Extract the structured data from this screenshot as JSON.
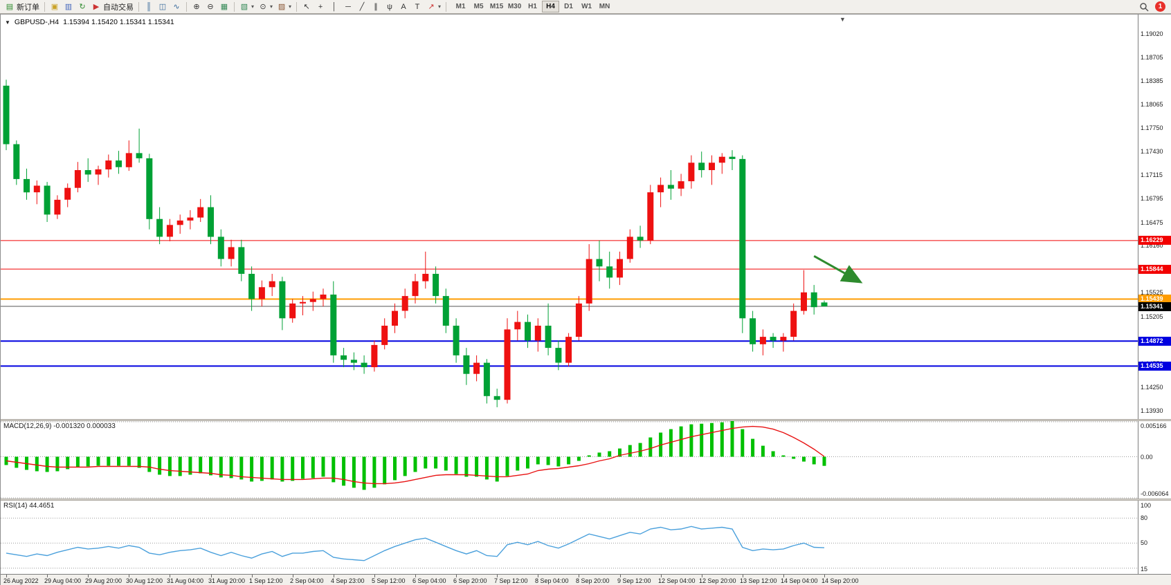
{
  "toolbar": {
    "groups": [
      [
        {
          "name": "new-order-button",
          "icon": "new-order-icon",
          "glyph": "▤",
          "color": "#2e8b2e",
          "label": "新订单"
        }
      ],
      [
        {
          "name": "metaeditor-button",
          "icon": "editor-icon",
          "glyph": "▣",
          "color": "#c9a227"
        },
        {
          "name": "market-watch-button",
          "icon": "market-watch-icon",
          "glyph": "▥",
          "color": "#4466bb"
        },
        {
          "name": "refresh-button",
          "icon": "refresh-icon",
          "glyph": "↻",
          "color": "#2e8b2e"
        },
        {
          "name": "autotrading-button",
          "icon": "autotrading-icon",
          "glyph": "▶",
          "color": "#cc3333",
          "label": "自动交易"
        }
      ],
      [
        {
          "name": "bar-chart-button",
          "icon": "bar-chart-icon",
          "glyph": "║",
          "color": "#336699"
        },
        {
          "name": "candle-chart-button",
          "icon": "candle-chart-icon",
          "glyph": "◫",
          "color": "#336699"
        },
        {
          "name": "line-chart-button",
          "icon": "line-chart-icon",
          "glyph": "∿",
          "color": "#336699"
        }
      ],
      [
        {
          "name": "zoom-in-button",
          "icon": "zoom-in-icon",
          "glyph": "⊕",
          "color": "#333333"
        },
        {
          "name": "zoom-out-button",
          "icon": "zoom-out-icon",
          "glyph": "⊖",
          "color": "#333333"
        },
        {
          "name": "tile-windows-button",
          "icon": "tile-windows-icon",
          "glyph": "▦",
          "color": "#338855"
        }
      ],
      [
        {
          "name": "new-chart-button",
          "icon": "new-chart-icon",
          "glyph": "▧",
          "color": "#338855",
          "dropdown": true
        },
        {
          "name": "profiles-button",
          "icon": "clock-icon",
          "glyph": "⊙",
          "color": "#333333",
          "dropdown": true
        },
        {
          "name": "indicators-button",
          "icon": "indicator-icon",
          "glyph": "▨",
          "color": "#885533",
          "dropdown": true
        }
      ],
      [
        {
          "name": "cursor-button",
          "icon": "cursor-icon",
          "glyph": "↖",
          "color": "#333333"
        },
        {
          "name": "crosshair-button",
          "icon": "crosshair-icon",
          "glyph": "+",
          "color": "#333333"
        },
        {
          "name": "vertical-line-button",
          "icon": "vertical-line-icon",
          "glyph": "│",
          "color": "#333333"
        },
        {
          "name": "horizontal-line-button",
          "icon": "horizontal-line-icon",
          "glyph": "─",
          "color": "#333333"
        },
        {
          "name": "trendline-button",
          "icon": "trendline-icon",
          "glyph": "╱",
          "color": "#333333"
        },
        {
          "name": "channel-button",
          "icon": "channel-icon",
          "glyph": "∥",
          "color": "#333333"
        },
        {
          "name": "fibonacci-button",
          "icon": "fibonacci-icon",
          "glyph": "ψ",
          "color": "#333333"
        },
        {
          "name": "text-button",
          "icon": "text-icon",
          "glyph": "A",
          "color": "#333333"
        },
        {
          "name": "text-label-button",
          "icon": "text-label-icon",
          "glyph": "T",
          "color": "#333333"
        },
        {
          "name": "arrows-button",
          "icon": "arrow-object-icon",
          "glyph": "↗",
          "color": "#cc3333",
          "dropdown": true
        }
      ]
    ],
    "timeframes": [
      "M1",
      "M5",
      "M15",
      "M30",
      "H1",
      "H4",
      "D1",
      "W1",
      "MN"
    ],
    "active_timeframe": "H4",
    "notification_count": "1"
  },
  "chart": {
    "symbol_title": "GBPUSD-,H4",
    "ohlc": "1.15394 1.15420 1.15341 1.15341"
  },
  "price_axis": {
    "ticks": [
      "1.19020",
      "1.18705",
      "1.18385",
      "1.18065",
      "1.17750",
      "1.17430",
      "1.17115",
      "1.16795",
      "1.16475",
      "1.16160",
      "1.15840",
      "1.15525",
      "1.15205",
      "1.14890",
      "1.14570",
      "1.14250",
      "1.13930"
    ]
  },
  "macd_panel": {
    "label": "MACD(12,26,9) -0.001320 0.000033",
    "scale": [
      "0.005166",
      "0.00",
      "-0.006064"
    ]
  },
  "rsi_panel": {
    "label": "RSI(14) 44.4651",
    "scale": [
      "100",
      "80",
      "50",
      "15"
    ]
  },
  "chart_data": [
    {
      "type": "candlestick",
      "title": "GBPUSD- H4",
      "up_color": "#ee1111",
      "down_color": "#00a135",
      "ylim": [
        1.1382,
        1.1928
      ],
      "bars_per_label": 4,
      "x_labels": [
        "26 Aug 2022",
        "29 Aug 04:00",
        "29 Aug 20:00",
        "30 Aug 12:00",
        "31 Aug 04:00",
        "31 Aug 20:00",
        "1 Sep 12:00",
        "2 Sep 04:00",
        "4 Sep 23:00",
        "5 Sep 12:00",
        "6 Sep 04:00",
        "6 Sep 20:00",
        "7 Sep 12:00",
        "8 Sep 04:00",
        "8 Sep 20:00",
        "9 Sep 12:00",
        "12 Sep 04:00",
        "12 Sep 20:00",
        "13 Sep 12:00",
        "14 Sep 04:00",
        "14 Sep 20:00"
      ],
      "candles": [
        [
          1.1832,
          1.184,
          1.1745,
          1.1753
        ],
        [
          1.1753,
          1.1758,
          1.1698,
          1.1706
        ],
        [
          1.1706,
          1.172,
          1.1678,
          1.1688
        ],
        [
          1.1688,
          1.1704,
          1.1672,
          1.1697
        ],
        [
          1.1697,
          1.1702,
          1.1648,
          1.1658
        ],
        [
          1.1658,
          1.1684,
          1.1652,
          1.1678
        ],
        [
          1.1678,
          1.17,
          1.1668,
          1.1694
        ],
        [
          1.1694,
          1.1729,
          1.1688,
          1.1718
        ],
        [
          1.1718,
          1.1734,
          1.1702,
          1.1712
        ],
        [
          1.1712,
          1.1724,
          1.1698,
          1.1719
        ],
        [
          1.1719,
          1.1739,
          1.1708,
          1.1731
        ],
        [
          1.1731,
          1.1744,
          1.1713,
          1.1722
        ],
        [
          1.1722,
          1.1758,
          1.1717,
          1.1741
        ],
        [
          1.1741,
          1.1774,
          1.1728,
          1.1734
        ],
        [
          1.1734,
          1.174,
          1.1638,
          1.1652
        ],
        [
          1.1652,
          1.1668,
          1.1618,
          1.1628
        ],
        [
          1.1628,
          1.1652,
          1.1622,
          1.1644
        ],
        [
          1.1644,
          1.1658,
          1.1632,
          1.165
        ],
        [
          1.165,
          1.1664,
          1.1638,
          1.1654
        ],
        [
          1.1654,
          1.1679,
          1.1648,
          1.1668
        ],
        [
          1.1668,
          1.1684,
          1.1618,
          1.1628
        ],
        [
          1.1628,
          1.1638,
          1.1588,
          1.1598
        ],
        [
          1.1598,
          1.1624,
          1.1588,
          1.1614
        ],
        [
          1.1614,
          1.1624,
          1.1568,
          1.1578
        ],
        [
          1.1578,
          1.1588,
          1.1528,
          1.1544
        ],
        [
          1.1544,
          1.1569,
          1.1534,
          1.156
        ],
        [
          1.156,
          1.1578,
          1.1548,
          1.1568
        ],
        [
          1.1568,
          1.1574,
          1.1502,
          1.1518
        ],
        [
          1.1518,
          1.1544,
          1.1512,
          1.1538
        ],
        [
          1.1538,
          1.1548,
          1.1522,
          1.154
        ],
        [
          1.154,
          1.1554,
          1.1528,
          1.1544
        ],
        [
          1.1544,
          1.1558,
          1.1534,
          1.155
        ],
        [
          1.155,
          1.1568,
          1.1458,
          1.1468
        ],
        [
          1.1468,
          1.1478,
          1.1452,
          1.1462
        ],
        [
          1.1462,
          1.1472,
          1.1448,
          1.1458
        ],
        [
          1.1458,
          1.1468,
          1.1443,
          1.1452
        ],
        [
          1.1452,
          1.1488,
          1.1446,
          1.1482
        ],
        [
          1.1482,
          1.1518,
          1.1476,
          1.1508
        ],
        [
          1.1508,
          1.1538,
          1.1498,
          1.1528
        ],
        [
          1.1528,
          1.1558,
          1.1518,
          1.1548
        ],
        [
          1.1548,
          1.1578,
          1.1538,
          1.1568
        ],
        [
          1.1568,
          1.1608,
          1.1558,
          1.1578
        ],
        [
          1.1578,
          1.1588,
          1.1538,
          1.1548
        ],
        [
          1.1548,
          1.1558,
          1.1498,
          1.1508
        ],
        [
          1.1508,
          1.1518,
          1.1458,
          1.1468
        ],
        [
          1.1468,
          1.1478,
          1.1428,
          1.1443
        ],
        [
          1.1443,
          1.1468,
          1.1433,
          1.1458
        ],
        [
          1.1458,
          1.1463,
          1.1403,
          1.1413
        ],
        [
          1.1413,
          1.1423,
          1.1398,
          1.1408
        ],
        [
          1.1408,
          1.1518,
          1.1403,
          1.1503
        ],
        [
          1.1503,
          1.1528,
          1.1488,
          1.1513
        ],
        [
          1.1513,
          1.1523,
          1.1478,
          1.1488
        ],
        [
          1.1488,
          1.1518,
          1.1473,
          1.1508
        ],
        [
          1.1508,
          1.1538,
          1.1468,
          1.1478
        ],
        [
          1.1478,
          1.1488,
          1.1448,
          1.1458
        ],
        [
          1.1458,
          1.1498,
          1.1453,
          1.1493
        ],
        [
          1.1493,
          1.1548,
          1.1488,
          1.1538
        ],
        [
          1.1538,
          1.1618,
          1.1528,
          1.1598
        ],
        [
          1.1598,
          1.1623,
          1.1568,
          1.1588
        ],
        [
          1.1588,
          1.1608,
          1.1558,
          1.1573
        ],
        [
          1.1573,
          1.1608,
          1.1563,
          1.1598
        ],
        [
          1.1598,
          1.1638,
          1.1593,
          1.1628
        ],
        [
          1.1628,
          1.1643,
          1.1613,
          1.1623
        ],
        [
          1.1623,
          1.1698,
          1.1618,
          1.1688
        ],
        [
          1.1688,
          1.1708,
          1.1668,
          1.1698
        ],
        [
          1.1698,
          1.1718,
          1.1678,
          1.1693
        ],
        [
          1.1693,
          1.1713,
          1.1683,
          1.1703
        ],
        [
          1.1703,
          1.1738,
          1.1693,
          1.1728
        ],
        [
          1.1728,
          1.1743,
          1.1708,
          1.1718
        ],
        [
          1.1718,
          1.1738,
          1.1698,
          1.1728
        ],
        [
          1.1728,
          1.1741,
          1.1713,
          1.1736
        ],
        [
          1.1736,
          1.1745,
          1.1718,
          1.1733
        ],
        [
          1.1733,
          1.1738,
          1.1498,
          1.1518
        ],
        [
          1.1518,
          1.1528,
          1.1473,
          1.1483
        ],
        [
          1.1483,
          1.1503,
          1.1468,
          1.1493
        ],
        [
          1.1493,
          1.1498,
          1.1478,
          1.1488
        ],
        [
          1.1488,
          1.1498,
          1.1473,
          1.1493
        ],
        [
          1.1493,
          1.1538,
          1.1488,
          1.1528
        ],
        [
          1.1528,
          1.1583,
          1.1523,
          1.1553
        ],
        [
          1.1553,
          1.1563,
          1.1523,
          1.1533
        ],
        [
          1.15394,
          1.1542,
          1.15341,
          1.15341
        ]
      ],
      "hlines": [
        {
          "price": 1.16229,
          "label": "1.16229",
          "color": "#f20000",
          "badge_color": "#f20000",
          "text_color": "#ffffff",
          "width": 1,
          "role": "resistance-line-1"
        },
        {
          "price": 1.15844,
          "label": "1.15844",
          "color": "#f20000",
          "badge_color": "#f20000",
          "text_color": "#ffffff",
          "width": 1,
          "role": "resistance-line-2"
        },
        {
          "price": 1.15439,
          "label": "1.15439",
          "color": "#ff9c00",
          "badge_color": "#ff9c00",
          "text_color": "#ffffff",
          "width": 2,
          "role": "pivot-line"
        },
        {
          "price": 1.15341,
          "label": "1.15341",
          "color": "#555555",
          "badge_color": "#000000",
          "text_color": "#ffffff",
          "width": 1,
          "role": "current-price"
        },
        {
          "price": 1.14872,
          "label": "1.14872",
          "color": "#0000e0",
          "badge_color": "#0000e0",
          "text_color": "#ffffff",
          "width": 2,
          "role": "support-line-1"
        },
        {
          "price": 1.14535,
          "label": "1.14535",
          "color": "#0000e0",
          "badge_color": "#0000e0",
          "text_color": "#ffffff",
          "width": 2,
          "role": "support-line-2"
        }
      ],
      "arrow": {
        "x1_bar": 79,
        "y1_price": 1.1602,
        "x2_bar": 83.4,
        "y2_price": 1.1568,
        "color": "#2e8b2e"
      }
    },
    {
      "type": "bar",
      "title": "MACD(12,26,9)",
      "histogram_color": "#00c000",
      "signal_color": "#e81212",
      "ylim": [
        -0.006064,
        0.005166
      ],
      "levels": [
        0.005166,
        0,
        -0.006064
      ],
      "histogram": [
        -0.0012,
        -0.0016,
        -0.0019,
        -0.0021,
        -0.0022,
        -0.0021,
        -0.0018,
        -0.0015,
        -0.0014,
        -0.0013,
        -0.0013,
        -0.0013,
        -0.0013,
        -0.0016,
        -0.0022,
        -0.0026,
        -0.0028,
        -0.0028,
        -0.0026,
        -0.0024,
        -0.0027,
        -0.003,
        -0.0031,
        -0.0033,
        -0.0036,
        -0.0035,
        -0.0033,
        -0.0036,
        -0.0035,
        -0.0032,
        -0.0031,
        -0.0029,
        -0.0037,
        -0.0042,
        -0.0045,
        -0.0048,
        -0.0045,
        -0.004,
        -0.0034,
        -0.0028,
        -0.0022,
        -0.0017,
        -0.0017,
        -0.002,
        -0.0025,
        -0.0029,
        -0.0029,
        -0.0033,
        -0.0036,
        -0.0028,
        -0.002,
        -0.0017,
        -0.0011,
        -0.0012,
        -0.0014,
        -0.0011,
        -0.0006,
        0.0002,
        0.0006,
        0.0008,
        0.0012,
        0.0017,
        0.002,
        0.0028,
        0.0035,
        0.004,
        0.0044,
        0.0047,
        0.0048,
        0.0049,
        0.005,
        0.005166,
        0.004,
        0.0026,
        0.0016,
        0.0008,
        0.0002,
        -0.0003,
        -0.0007,
        -0.0011,
        -0.00132
      ],
      "signal": [
        -0.0006,
        -0.0008,
        -0.001,
        -0.0012,
        -0.0014,
        -0.0015,
        -0.0015,
        -0.0015,
        -0.0015,
        -0.0014,
        -0.0014,
        -0.0014,
        -0.0014,
        -0.0014,
        -0.0015,
        -0.0018,
        -0.002,
        -0.0021,
        -0.0022,
        -0.0023,
        -0.0024,
        -0.0026,
        -0.0027,
        -0.0029,
        -0.003,
        -0.0031,
        -0.0032,
        -0.0033,
        -0.0033,
        -0.0033,
        -0.0032,
        -0.0031,
        -0.0031,
        -0.0033,
        -0.0036,
        -0.0038,
        -0.0039,
        -0.0039,
        -0.0038,
        -0.0036,
        -0.0033,
        -0.003,
        -0.0027,
        -0.0026,
        -0.0026,
        -0.0026,
        -0.0027,
        -0.0028,
        -0.0029,
        -0.0029,
        -0.0027,
        -0.0025,
        -0.002,
        -0.0018,
        -0.0017,
        -0.0015,
        -0.0013,
        -0.001,
        -0.0006,
        -0.0003,
        0.0002,
        0.0005,
        0.0008,
        0.0012,
        0.0017,
        0.0021,
        0.0025,
        0.0029,
        0.0032,
        0.0035,
        0.0038,
        0.0041,
        0.0043,
        0.0044,
        0.0043,
        0.004,
        0.0035,
        0.0028,
        0.002,
        0.0011,
        3.3e-05
      ]
    },
    {
      "type": "line",
      "title": "RSI(14)",
      "color": "#4aa0dc",
      "ylim": [
        13,
        101
      ],
      "levels": [
        80,
        50,
        20
      ],
      "values": [
        38,
        36,
        34,
        37,
        35,
        39,
        42,
        45,
        43,
        44,
        46,
        44,
        47,
        45,
        38,
        36,
        39,
        41,
        42,
        44,
        39,
        35,
        39,
        35,
        32,
        37,
        40,
        34,
        38,
        38,
        40,
        41,
        33,
        31,
        30,
        29,
        35,
        41,
        46,
        50,
        54,
        56,
        51,
        46,
        41,
        37,
        41,
        35,
        34,
        48,
        51,
        48,
        52,
        47,
        44,
        49,
        55,
        61,
        58,
        55,
        59,
        63,
        61,
        67,
        69,
        66,
        67,
        70,
        67,
        68,
        69,
        67,
        45,
        41,
        43,
        42,
        43,
        47,
        50,
        45,
        44.4651
      ]
    }
  ]
}
